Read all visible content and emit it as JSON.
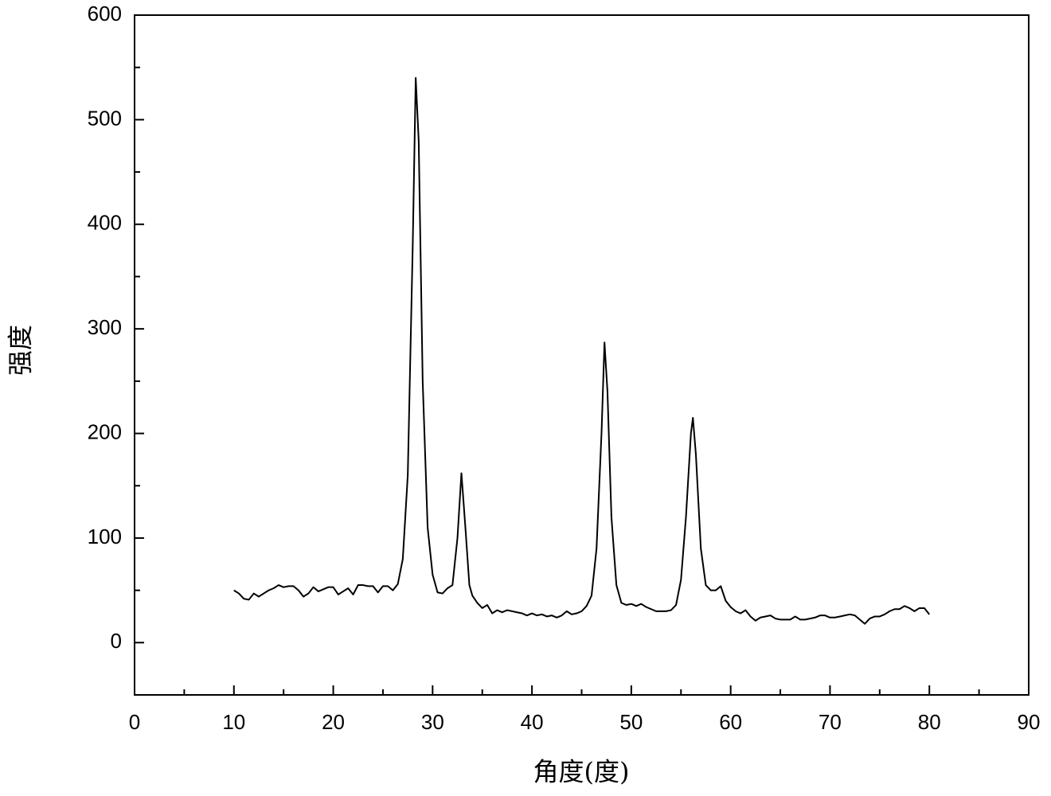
{
  "chart_data": {
    "type": "line",
    "xlabel": "角度(度)",
    "ylabel": "强度",
    "xlim": [
      0,
      90
    ],
    "xticks": [
      0,
      10,
      20,
      30,
      40,
      50,
      60,
      70,
      80,
      90
    ],
    "ylim": [
      -50,
      600
    ],
    "yticks": [
      0,
      100,
      200,
      300,
      400,
      500,
      600
    ],
    "series": [
      {
        "color": "#000000",
        "x": [
          10,
          10.5,
          11,
          11.5,
          12,
          12.5,
          13,
          13.5,
          14,
          14.5,
          15,
          15.5,
          16,
          16.5,
          17,
          17.5,
          18,
          18.5,
          19,
          19.5,
          20,
          20.5,
          21,
          21.5,
          22,
          22.5,
          23,
          23.5,
          24,
          24.5,
          25,
          25.5,
          26,
          26.5,
          27,
          27.5,
          28,
          28.3,
          28.6,
          29,
          29.5,
          30,
          30.5,
          31,
          31.5,
          32,
          32.5,
          32.9,
          33.3,
          33.7,
          34,
          34.5,
          35,
          35.5,
          36,
          36.5,
          37,
          37.5,
          38,
          38.5,
          39,
          39.5,
          40,
          40.5,
          41,
          41.5,
          42,
          42.5,
          43,
          43.5,
          44,
          44.5,
          45,
          45.5,
          46,
          46.5,
          47,
          47.3,
          47.6,
          48,
          48.5,
          49,
          49.5,
          50,
          50.5,
          51,
          51.5,
          52,
          52.5,
          53,
          53.5,
          54,
          54.5,
          55,
          55.5,
          56,
          56.2,
          56.5,
          57,
          57.5,
          58,
          58.5,
          59,
          59.5,
          60,
          60.5,
          61,
          61.5,
          62,
          62.5,
          63,
          63.5,
          64,
          64.5,
          65,
          65.5,
          66,
          66.5,
          67,
          67.5,
          68,
          68.5,
          69,
          69.5,
          70,
          70.5,
          71,
          71.5,
          72,
          72.5,
          73,
          73.5,
          74,
          74.5,
          75,
          75.5,
          76,
          76.5,
          77,
          77.5,
          78,
          78.5,
          79,
          79.5,
          80
        ],
        "values": [
          50,
          47,
          42,
          41,
          47,
          44,
          47,
          50,
          52,
          55,
          53,
          54,
          54,
          50,
          44,
          47,
          53,
          49,
          51,
          53,
          53,
          46,
          49,
          52,
          46,
          55,
          55,
          54,
          54,
          48,
          54,
          54,
          50,
          56,
          80,
          160,
          380,
          540,
          480,
          250,
          110,
          65,
          48,
          47,
          52,
          55,
          100,
          162,
          110,
          55,
          45,
          38,
          33,
          36,
          28,
          31,
          29,
          31,
          30,
          29,
          28,
          26,
          28,
          26,
          27,
          25,
          26,
          24,
          26,
          30,
          27,
          28,
          30,
          35,
          45,
          90,
          200,
          287,
          240,
          120,
          55,
          38,
          36,
          37,
          35,
          37,
          34,
          32,
          30,
          30,
          30,
          31,
          36,
          60,
          120,
          200,
          215,
          180,
          90,
          55,
          50,
          50,
          54,
          40,
          34,
          30,
          28,
          31,
          25,
          21,
          24,
          25,
          26,
          23,
          22,
          22,
          22,
          25,
          22,
          22,
          23,
          24,
          26,
          26,
          24,
          24,
          25,
          26,
          27,
          26,
          22,
          18,
          23,
          25,
          25,
          27,
          30,
          32,
          32,
          35,
          33,
          30,
          33,
          33,
          27
        ]
      }
    ]
  }
}
